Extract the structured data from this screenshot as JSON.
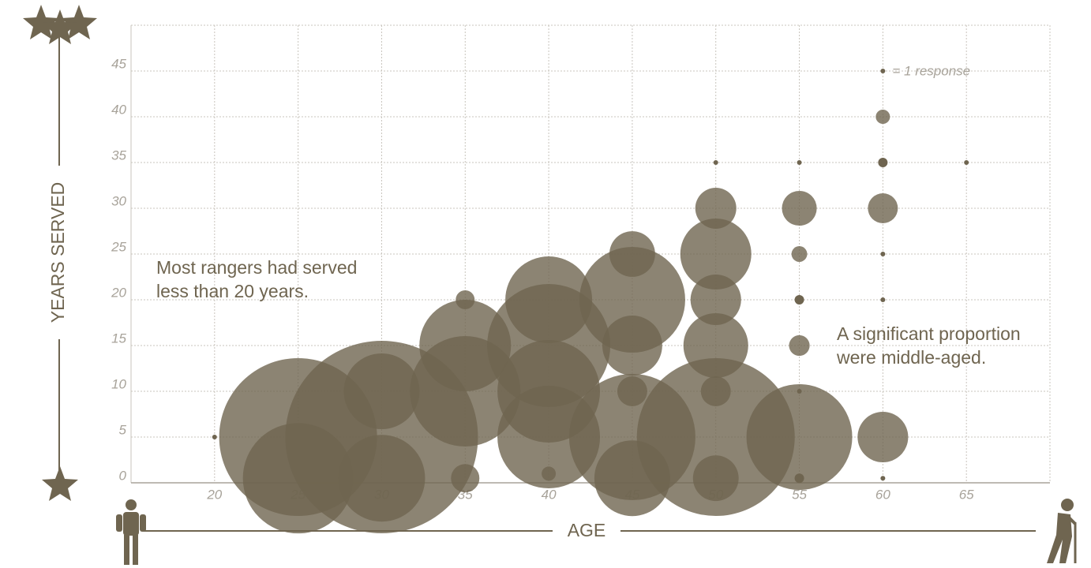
{
  "chart_data": {
    "type": "bubble",
    "x_label": "AGE",
    "y_label": "YEARS SERVED",
    "x": [
      20,
      25,
      25,
      30,
      30,
      30,
      35,
      35,
      35,
      35,
      40,
      40,
      40,
      40,
      40,
      45,
      45,
      45,
      45,
      45,
      45,
      50,
      50,
      50,
      50,
      50,
      50,
      50,
      50,
      55,
      55,
      55,
      55,
      55,
      55,
      55,
      55,
      60,
      60,
      60,
      60,
      60,
      60,
      60,
      65
    ],
    "y": [
      5,
      5,
      0.5,
      5,
      0.5,
      10,
      20,
      15,
      10,
      0.5,
      20,
      15,
      10,
      5,
      1,
      25,
      20,
      15,
      10,
      5,
      0.5,
      35,
      30,
      25,
      20,
      15,
      10,
      5,
      0.5,
      35,
      30,
      25,
      20,
      15,
      10,
      5,
      0.5,
      40,
      35,
      30,
      25,
      20,
      5,
      0.5,
      35
    ],
    "size": [
      1,
      1111,
      544,
      1654,
      336,
      256,
      16,
      374,
      544,
      36,
      336,
      676,
      469,
      469,
      9,
      93,
      499,
      160,
      40,
      711,
      256,
      1,
      75,
      225,
      114,
      187,
      40,
      1111,
      93,
      1,
      54,
      11,
      4,
      19,
      1,
      499,
      4,
      9,
      4,
      40,
      1,
      1,
      114,
      1,
      1
    ],
    "color": "#6f6550",
    "xlim": [
      15,
      70
    ],
    "ylim": [
      0,
      50
    ],
    "xticks": [
      20,
      25,
      30,
      35,
      40,
      45,
      50,
      55,
      60,
      65
    ],
    "yticks": [
      0,
      5,
      10,
      15,
      20,
      25,
      30,
      35,
      40,
      45
    ],
    "grid": true,
    "legend": {
      "size": 1,
      "label": "= 1 response"
    },
    "annotations": [
      {
        "lines": [
          "Most rangers had served",
          "less than 20 years."
        ]
      },
      {
        "lines": [
          "A significant proportion",
          "were middle-aged."
        ]
      }
    ]
  }
}
